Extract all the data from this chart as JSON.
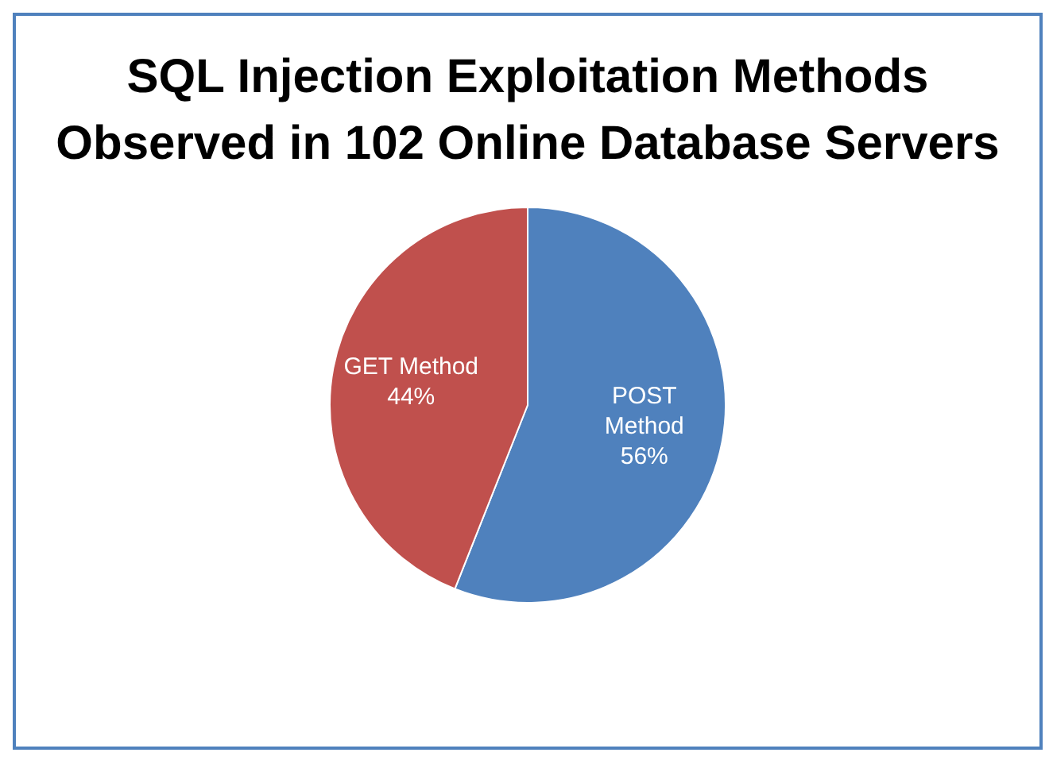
{
  "chart_data": {
    "type": "pie",
    "title": "SQL Injection Exploitation Methods Observed in 102 Online Database Servers",
    "categories": [
      "POST Method",
      "GET Method"
    ],
    "values": [
      56,
      44
    ],
    "colors": [
      "#4f81bd",
      "#c0504d"
    ],
    "value_labels": [
      "56%",
      "44%"
    ],
    "legend": false
  }
}
